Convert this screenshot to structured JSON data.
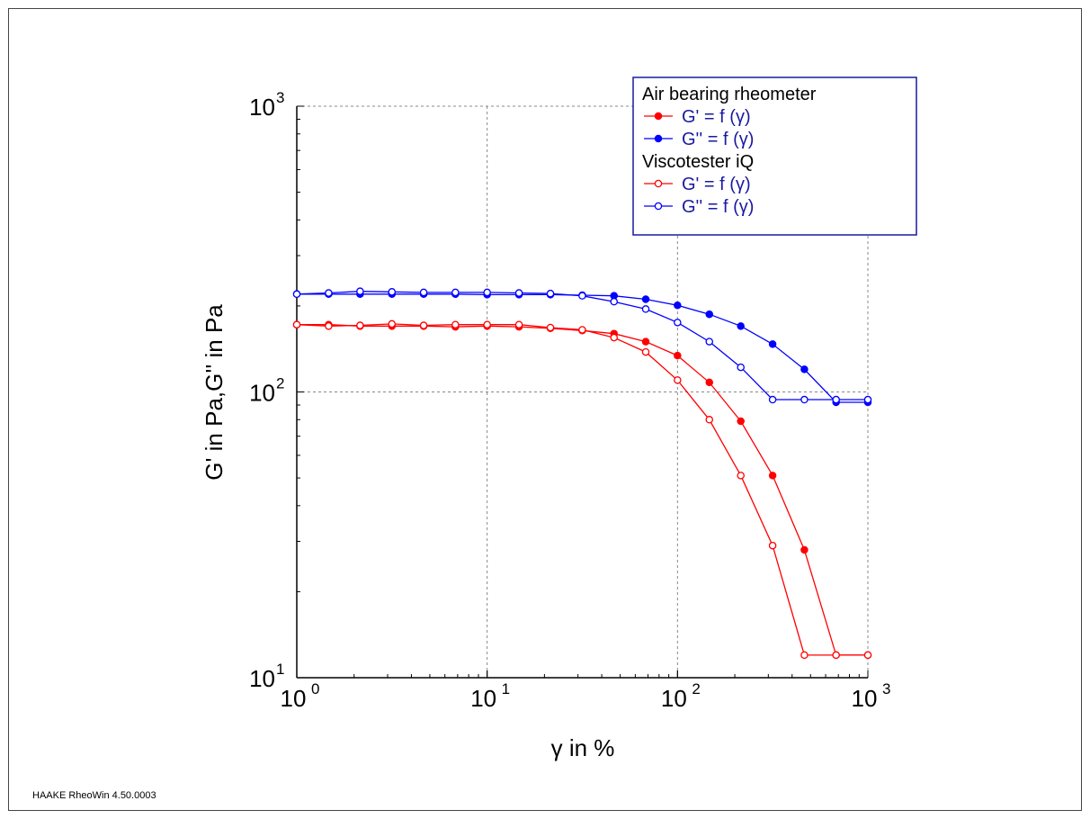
{
  "footer": "HAAKE RheoWin 4.50.0003",
  "chart_data": {
    "type": "line",
    "xlabel": "γ in %",
    "ylabel": "G' in Pa,G'' in Pa",
    "x_scale": "log",
    "y_scale": "log",
    "xlim": [
      1,
      1000
    ],
    "ylim": [
      10,
      1000
    ],
    "x_ticks": [
      {
        "base": "10",
        "exp": "0"
      },
      {
        "base": "10",
        "exp": "1"
      },
      {
        "base": "10",
        "exp": "2"
      },
      {
        "base": "10",
        "exp": "3"
      }
    ],
    "y_ticks": [
      {
        "base": "10",
        "exp": "1"
      },
      {
        "base": "10",
        "exp": "2"
      },
      {
        "base": "10",
        "exp": "3"
      }
    ],
    "grid": true,
    "legend_position": "top-right",
    "legend_groups": [
      {
        "title": "Air bearing rheometer",
        "entries": [
          {
            "label": "G' = f (γ)",
            "series": 0
          },
          {
            "label": "G'' = f (γ)",
            "series": 1
          }
        ]
      },
      {
        "title": "Viscotester iQ",
        "entries": [
          {
            "label": "G' = f (γ)",
            "series": 2
          },
          {
            "label": "G'' = f (γ)",
            "series": 3
          }
        ]
      }
    ],
    "series": [
      {
        "color": "#ff0000",
        "marker": "filled",
        "x": [
          1.0,
          1.47,
          2.15,
          3.16,
          4.64,
          6.81,
          10.0,
          14.7,
          21.5,
          31.6,
          46.4,
          68.1,
          100,
          147,
          215,
          316,
          464,
          681,
          1000
        ],
        "y": [
          172,
          172,
          170,
          170,
          170,
          169,
          170,
          169,
          167,
          164,
          160,
          150,
          134,
          108,
          79,
          51,
          28,
          12,
          12
        ]
      },
      {
        "color": "#0000ff",
        "marker": "filled",
        "x": [
          1.0,
          1.47,
          2.15,
          3.16,
          4.64,
          6.81,
          10.0,
          14.7,
          21.5,
          31.6,
          46.4,
          68.1,
          100,
          147,
          215,
          316,
          464,
          681,
          1000
        ],
        "y": [
          220,
          220,
          220,
          220,
          220,
          220,
          219,
          219,
          219,
          218,
          217,
          211,
          201,
          187,
          170,
          147,
          120,
          92,
          92
        ]
      },
      {
        "color": "#ff0000",
        "marker": "open",
        "x": [
          1.0,
          1.47,
          2.15,
          3.16,
          4.64,
          6.81,
          10.0,
          14.7,
          21.5,
          31.6,
          46.4,
          68.1,
          100,
          147,
          215,
          316,
          464,
          681,
          1000
        ],
        "y": [
          172,
          170,
          171,
          173,
          171,
          172,
          172,
          172,
          168,
          165,
          155,
          138,
          110,
          80,
          51,
          29,
          12,
          12,
          12
        ]
      },
      {
        "color": "#0000ff",
        "marker": "open",
        "x": [
          1.0,
          1.47,
          2.15,
          3.16,
          4.64,
          6.81,
          10.0,
          14.7,
          21.5,
          31.6,
          46.4,
          68.1,
          100,
          147,
          215,
          316,
          464,
          681,
          1000
        ],
        "y": [
          220,
          222,
          225,
          224,
          223,
          223,
          223,
          222,
          221,
          217,
          207,
          195,
          175,
          150,
          122,
          94,
          94,
          94,
          94
        ]
      }
    ]
  }
}
